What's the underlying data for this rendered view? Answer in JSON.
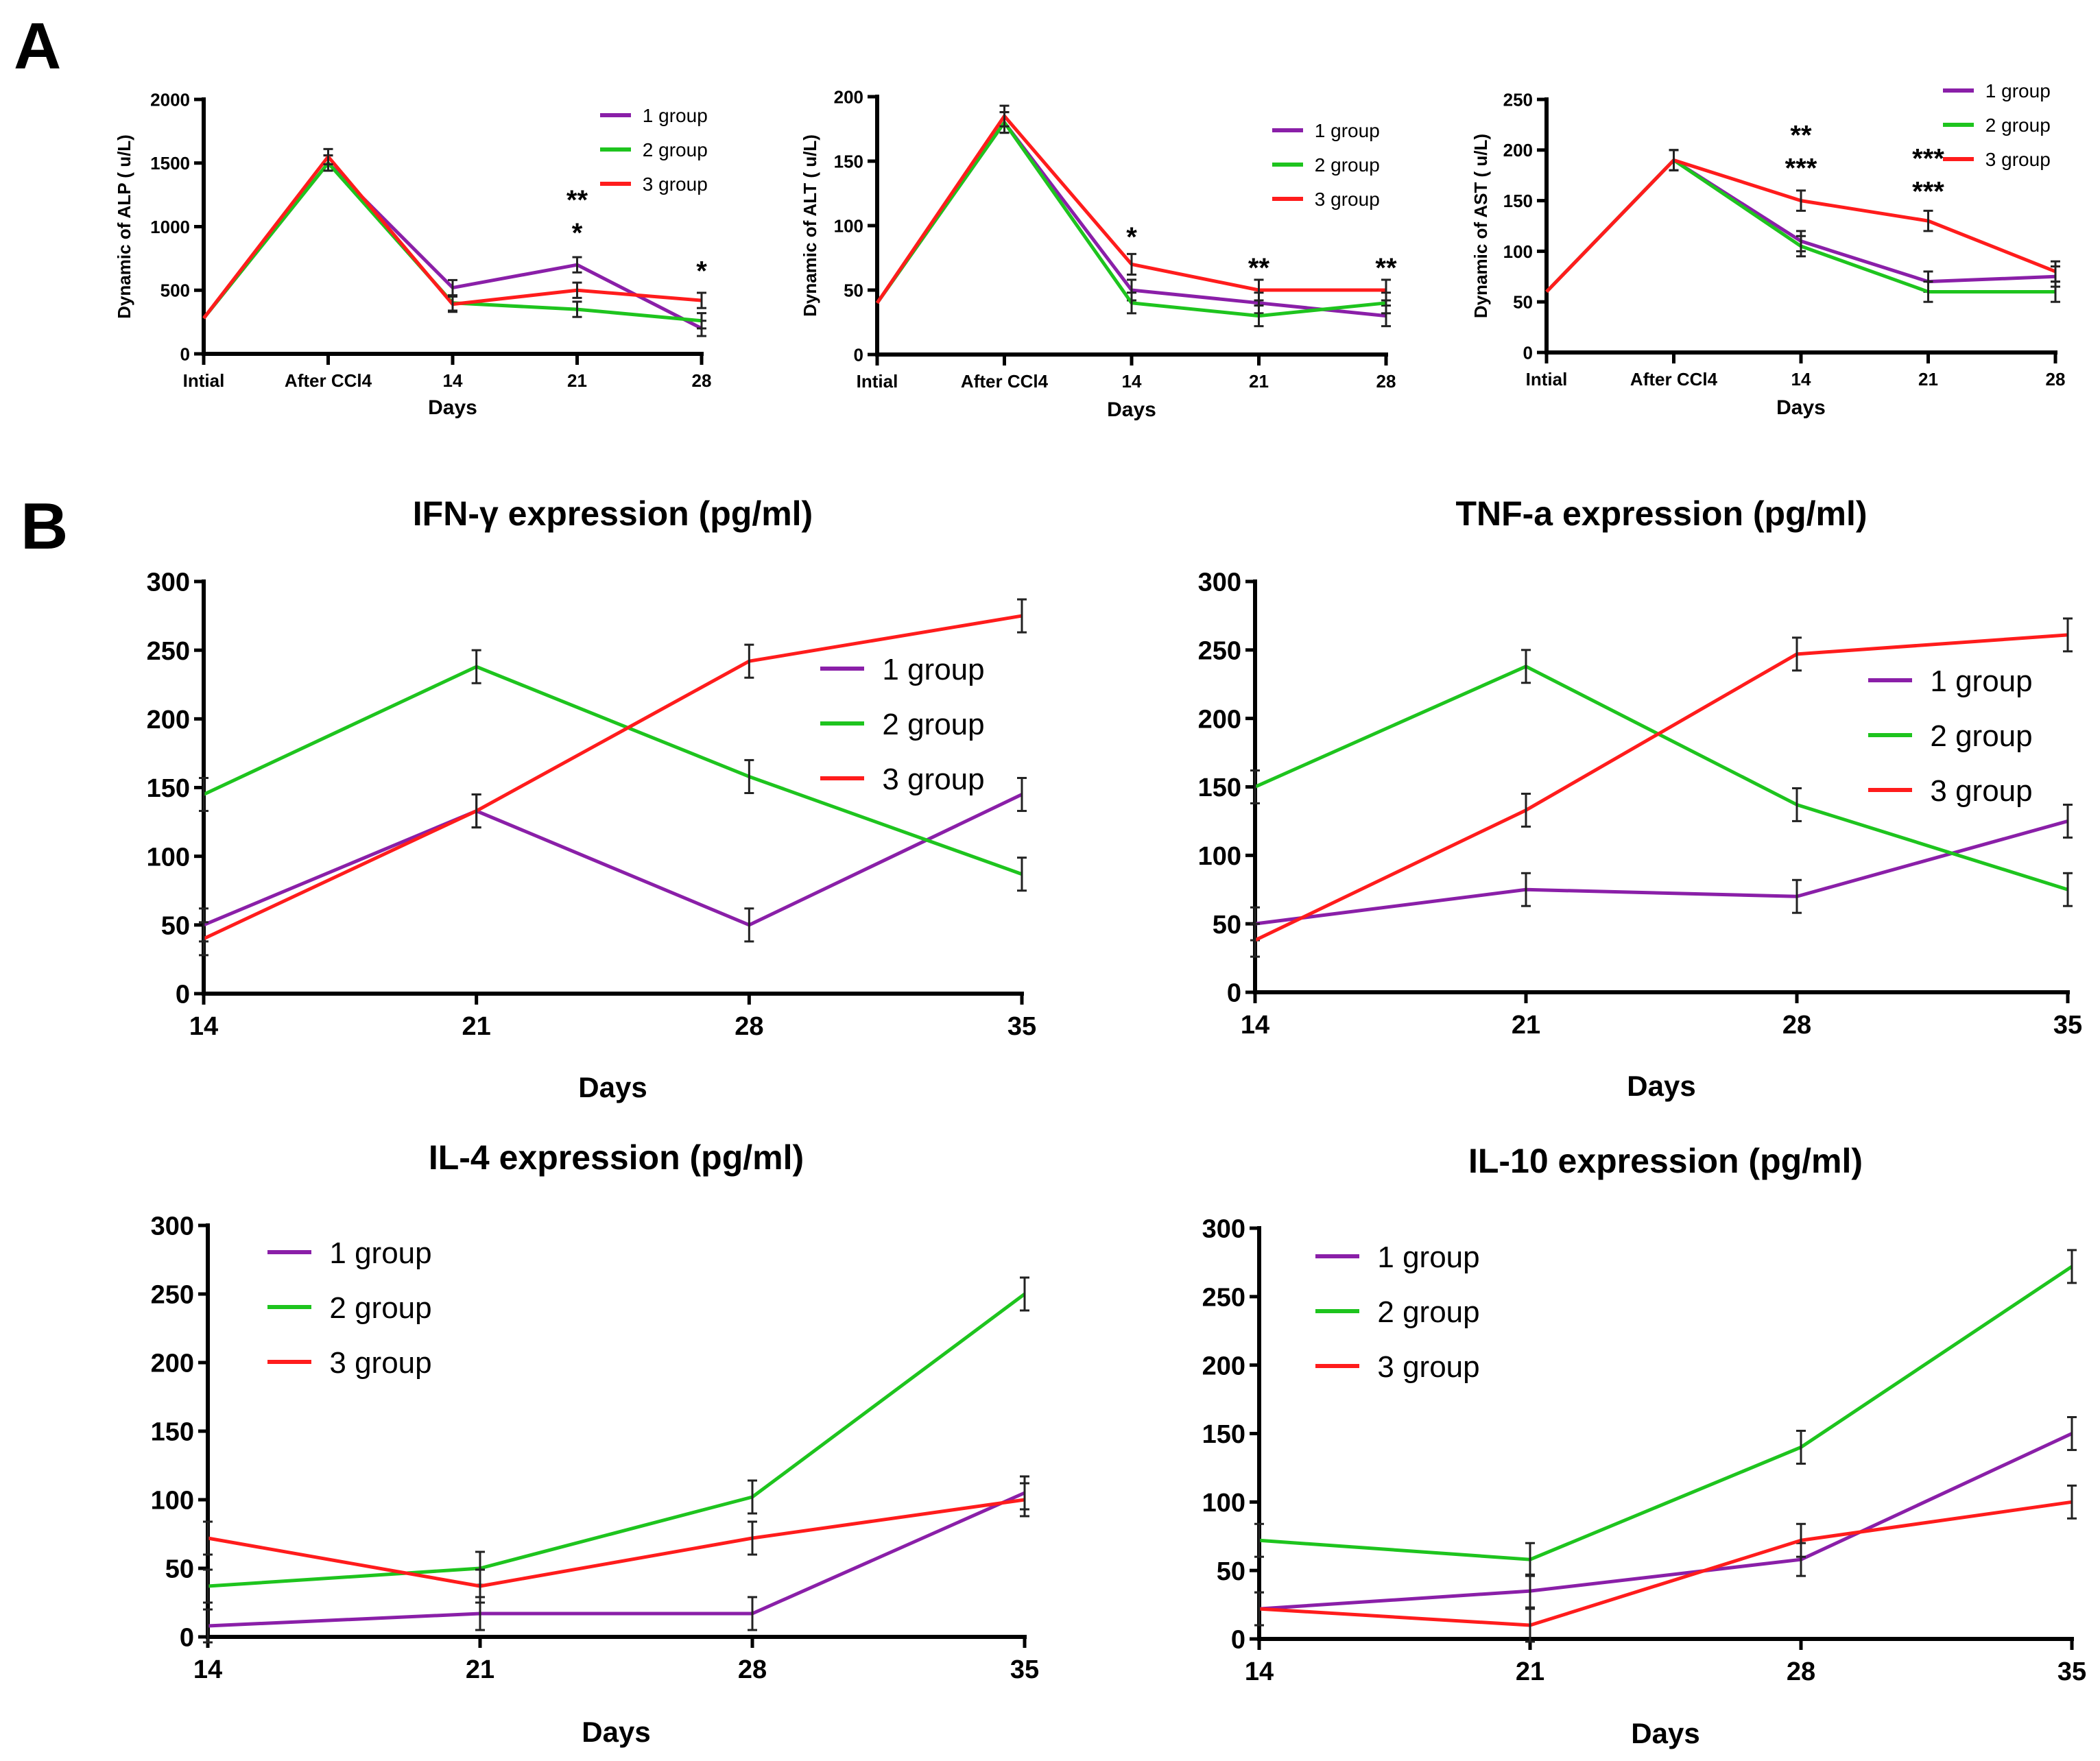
{
  "panels": {
    "a": "A",
    "b": "B"
  },
  "colors": {
    "1 group": "#8A1FA8",
    "2 group": "#1EC41E",
    "3 group": "#FF1C1C",
    "error": "#222222"
  },
  "chart_data": [
    {
      "type": "line",
      "panel": "A",
      "title": "",
      "xlabel": "Days",
      "ylabel": "Dynamic of ALP ( u/L)",
      "x": [
        "Intial",
        "After CCl4",
        "14",
        "21",
        "28"
      ],
      "ylim": [
        0,
        2000
      ],
      "yticks": [
        0,
        500,
        1000,
        1500,
        2000
      ],
      "error": 60,
      "legend": "top-right",
      "grid": false,
      "series": [
        {
          "name": "1 group",
          "values": [
            280,
            1500,
            520,
            700,
            200
          ]
        },
        {
          "name": "2 group",
          "values": [
            280,
            1500,
            400,
            350,
            260
          ]
        },
        {
          "name": "3 group",
          "values": [
            280,
            1550,
            390,
            500,
            420
          ]
        }
      ],
      "annotations": [
        {
          "x": "21",
          "y": 1050,
          "text": "**",
          "series": "1 group"
        },
        {
          "x": "21",
          "y": 880,
          "text": "*",
          "series": "2 group"
        },
        {
          "x": "28",
          "y": 580,
          "text": "*",
          "series": "1 group"
        }
      ]
    },
    {
      "type": "line",
      "panel": "A",
      "title": "",
      "xlabel": "Days",
      "ylabel": "Dynamic of ALT ( u/L)",
      "x": [
        "Intial",
        "After CCl4",
        "14",
        "21",
        "28"
      ],
      "ylim": [
        0,
        200
      ],
      "yticks": [
        0,
        50,
        100,
        150,
        200
      ],
      "error": 8,
      "legend": "top-right",
      "grid": false,
      "series": [
        {
          "name": "1 group",
          "values": [
            40,
            180,
            50,
            40,
            30
          ]
        },
        {
          "name": "2 group",
          "values": [
            40,
            180,
            40,
            30,
            40
          ]
        },
        {
          "name": "3 group",
          "values": [
            40,
            185,
            70,
            50,
            50
          ]
        }
      ],
      "annotations": [
        {
          "x": "14",
          "y": 84,
          "text": "*",
          "series": "2 group"
        },
        {
          "x": "21",
          "y": 60,
          "text": "**",
          "series": "2 group"
        },
        {
          "x": "28",
          "y": 60,
          "text": "**",
          "series": "1 group"
        }
      ]
    },
    {
      "type": "line",
      "panel": "A",
      "title": "",
      "xlabel": "Days",
      "ylabel": "Dynamic of AST ( u/L)",
      "x": [
        "Intial",
        "After CCl4",
        "14",
        "21",
        "28"
      ],
      "ylim": [
        0,
        250
      ],
      "yticks": [
        0,
        50,
        100,
        150,
        200,
        250
      ],
      "error": 10,
      "legend": "top-right",
      "grid": false,
      "series": [
        {
          "name": "1 group",
          "values": [
            60,
            190,
            110,
            70,
            75
          ]
        },
        {
          "name": "2 group",
          "values": [
            60,
            190,
            105,
            60,
            60
          ]
        },
        {
          "name": "3 group",
          "values": [
            60,
            190,
            150,
            130,
            80
          ]
        }
      ],
      "annotations": [
        {
          "x": "14",
          "y": 190,
          "text": "**",
          "series": "1 group"
        },
        {
          "x": "14",
          "y": 173,
          "text": "***",
          "series": "2 group"
        },
        {
          "x": "21",
          "y": 168,
          "text": "***",
          "series": "1 group"
        },
        {
          "x": "21",
          "y": 150,
          "text": "***",
          "series": "2 group"
        }
      ]
    },
    {
      "type": "line",
      "panel": "B",
      "title": "IFN-γ expression (pg/ml)",
      "xlabel": "Days",
      "ylabel": "",
      "x": [
        "14",
        "21",
        "28",
        "35"
      ],
      "ylim": [
        0,
        300
      ],
      "yticks": [
        0,
        50,
        100,
        150,
        200,
        250,
        300
      ],
      "error": 12,
      "legend": "top-right",
      "grid": false,
      "series": [
        {
          "name": "1 group",
          "values": [
            50,
            133,
            50,
            145
          ]
        },
        {
          "name": "2 group",
          "values": [
            145,
            238,
            158,
            87
          ]
        },
        {
          "name": "3 group",
          "values": [
            40,
            133,
            242,
            275
          ]
        }
      ],
      "annotations": []
    },
    {
      "type": "line",
      "panel": "B",
      "title": "TNF-a expression (pg/ml)",
      "xlabel": "Days",
      "ylabel": "",
      "x": [
        "14",
        "21",
        "28",
        "35"
      ],
      "ylim": [
        0,
        300
      ],
      "yticks": [
        0,
        50,
        100,
        150,
        200,
        250,
        300
      ],
      "error": 12,
      "legend": "top-right",
      "grid": false,
      "series": [
        {
          "name": "1 group",
          "values": [
            50,
            75,
            70,
            125
          ]
        },
        {
          "name": "2 group",
          "values": [
            150,
            238,
            137,
            75
          ]
        },
        {
          "name": "3 group",
          "values": [
            38,
            133,
            247,
            261
          ]
        }
      ],
      "annotations": []
    },
    {
      "type": "line",
      "panel": "B",
      "title": "IL-4 expression (pg/ml)",
      "xlabel": "Days",
      "ylabel": "",
      "x": [
        "14",
        "21",
        "28",
        "35"
      ],
      "ylim": [
        0,
        300
      ],
      "yticks": [
        0,
        50,
        100,
        150,
        200,
        250,
        300
      ],
      "error": 12,
      "legend": "top-left",
      "grid": false,
      "series": [
        {
          "name": "1 group",
          "values": [
            8,
            17,
            17,
            105
          ]
        },
        {
          "name": "2 group",
          "values": [
            37,
            50,
            102,
            250
          ]
        },
        {
          "name": "3 group",
          "values": [
            72,
            37,
            72,
            100
          ]
        }
      ],
      "annotations": []
    },
    {
      "type": "line",
      "panel": "B",
      "title": "IL-10 expression (pg/ml)",
      "xlabel": "Days",
      "ylabel": "",
      "x": [
        "14",
        "21",
        "28",
        "35"
      ],
      "ylim": [
        0,
        300
      ],
      "yticks": [
        0,
        50,
        100,
        150,
        200,
        250,
        300
      ],
      "error": 12,
      "legend": "top-left",
      "grid": false,
      "series": [
        {
          "name": "1 group",
          "values": [
            22,
            35,
            58,
            150
          ]
        },
        {
          "name": "2 group",
          "values": [
            72,
            58,
            140,
            272
          ]
        },
        {
          "name": "3 group",
          "values": [
            22,
            10,
            72,
            100
          ]
        }
      ],
      "annotations": []
    }
  ]
}
